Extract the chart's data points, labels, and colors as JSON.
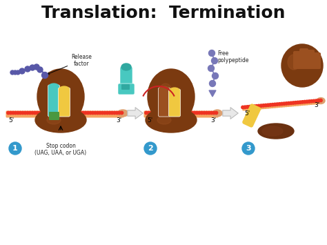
{
  "title": "Translation:  Termination",
  "title_fontsize": 18,
  "bg_color": "#ffffff",
  "ribosome_dark": "#7B3A10",
  "ribosome_mid": "#9B5020",
  "ribosome_light": "#B8763A",
  "mRNA_red": "#EE3322",
  "mRNA_peach": "#F4A460",
  "tRNA_cyan": "#48C8C0",
  "tRNA_cyan2": "#30A8A0",
  "tRNA_yellow": "#F0C840",
  "tRNA_green": "#4A9840",
  "release_factor_blue": "#5858A8",
  "release_factor_rod": "#5050A0",
  "polypeptide_blue": "#7878B8",
  "arrow_fill": "#E8E8E8",
  "arrow_edge": "#BBBBBB",
  "step_blue": "#3399CC",
  "text_black": "#111111",
  "text_dark": "#222222",
  "label_release": "Release\nfactor",
  "label_stop": "Stop codon\n(UAG, UAA, or UGA)",
  "label_free": "Free\npolypeptide",
  "five_p": "5'",
  "three_p": "3'"
}
